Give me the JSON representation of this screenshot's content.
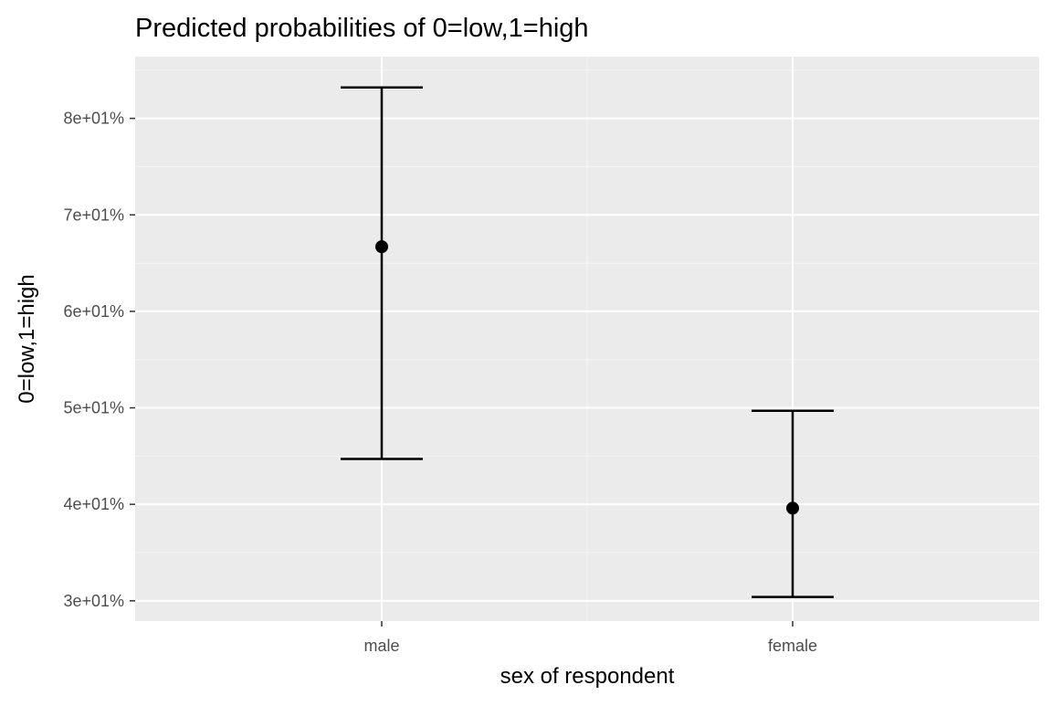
{
  "chart_data": {
    "type": "errorbar",
    "title": "Predicted probabilities of 0=low,1=high",
    "xlabel": "sex of respondent",
    "ylabel": "0=low,1=high",
    "categories": [
      "male",
      "female"
    ],
    "points": [
      {
        "category": "male",
        "estimate": 66.7,
        "lower": 44.7,
        "upper": 83.2
      },
      {
        "category": "female",
        "estimate": 39.6,
        "lower": 30.4,
        "upper": 49.7
      }
    ],
    "y_ticks": [
      30,
      40,
      50,
      60,
      70,
      80
    ],
    "y_tick_labels": [
      "3e+01%",
      "4e+01%",
      "5e+01%",
      "6e+01%",
      "7e+01%",
      "8e+01%"
    ],
    "ylim": [
      27.9,
      86.4
    ],
    "grid": true,
    "legend": "none",
    "colors": {
      "panel_background": "#ebebeb",
      "grid_major": "#ffffff",
      "grid_minor": "#f5f5f5",
      "marks": "#000000",
      "tick_text": "#4d4d4d"
    }
  }
}
